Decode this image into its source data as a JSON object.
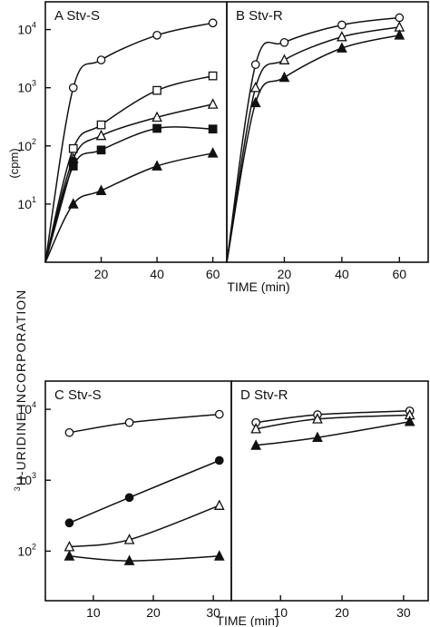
{
  "figure": {
    "ylabel_html_parts": [
      "3",
      "H-URIDINE  INCORPORATION"
    ],
    "ylabel_units": "(cpm)",
    "top_xlabel": "TIME  (min)",
    "bottom_xlabel": "TIME  (min)"
  },
  "chart_data": [
    {
      "type": "line",
      "panel_label": "A  Stv-S",
      "yscale": "log",
      "xlim": [
        0,
        65
      ],
      "ylim": [
        1,
        30000
      ],
      "yticks": [
        {
          "v": 10,
          "b": "10",
          "e": "1"
        },
        {
          "v": 100,
          "b": "10",
          "e": "2"
        },
        {
          "v": 1000,
          "b": "10",
          "e": "3"
        },
        {
          "v": 10000,
          "b": "10",
          "e": "4"
        }
      ],
      "xticks": [
        20,
        40,
        60
      ],
      "series": [
        {
          "marker": "open-circle",
          "x": [
            0,
            10,
            20,
            40,
            60
          ],
          "y": [
            1,
            1000,
            3000,
            8000,
            13000
          ]
        },
        {
          "marker": "open-square",
          "x": [
            0,
            10,
            20,
            40,
            60
          ],
          "y": [
            1,
            90,
            230,
            900,
            1600
          ]
        },
        {
          "marker": "open-triangle",
          "x": [
            0,
            10,
            20,
            40,
            60
          ],
          "y": [
            1,
            60,
            150,
            310,
            520
          ]
        },
        {
          "marker": "filled-square",
          "x": [
            0,
            10,
            20,
            40,
            60
          ],
          "y": [
            1,
            45,
            85,
            200,
            195
          ]
        },
        {
          "marker": "filled-circle",
          "x": [
            0,
            10
          ],
          "y": [
            1,
            55
          ]
        },
        {
          "marker": "filled-triangle",
          "x": [
            0,
            10,
            20,
            40,
            60
          ],
          "y": [
            1,
            10,
            17,
            45,
            75
          ]
        }
      ]
    },
    {
      "type": "line",
      "panel_label": "B  Stv-R",
      "yscale": "log",
      "xlim": [
        0,
        70
      ],
      "ylim": [
        1,
        30000
      ],
      "yticks": [],
      "xticks": [
        20,
        40,
        60
      ],
      "series": [
        {
          "marker": "open-circle",
          "x": [
            0,
            10,
            20,
            40,
            60
          ],
          "y": [
            1,
            2500,
            6000,
            12000,
            16000
          ]
        },
        {
          "marker": "open-triangle",
          "x": [
            0,
            10,
            20,
            40,
            60
          ],
          "y": [
            1,
            1000,
            3000,
            7500,
            11000
          ]
        },
        {
          "marker": "filled-triangle",
          "x": [
            0,
            10,
            20,
            40,
            60
          ],
          "y": [
            1,
            550,
            1500,
            4800,
            8000
          ]
        }
      ]
    },
    {
      "type": "line",
      "panel_label": "C  Stv-S",
      "yscale": "log",
      "xlim": [
        2,
        33
      ],
      "ylim": [
        20,
        25000
      ],
      "yticks": [
        {
          "v": 100,
          "b": "10",
          "e": "2"
        },
        {
          "v": 1000,
          "b": "10",
          "e": "3"
        },
        {
          "v": 10000,
          "b": "10",
          "e": "4"
        }
      ],
      "xticks": [
        10,
        20,
        30
      ],
      "series": [
        {
          "marker": "open-circle",
          "x": [
            6,
            16,
            31
          ],
          "y": [
            4700,
            6500,
            8500
          ]
        },
        {
          "marker": "filled-circle",
          "x": [
            6,
            16,
            31
          ],
          "y": [
            250,
            570,
            1900
          ]
        },
        {
          "marker": "open-triangle",
          "x": [
            6,
            16,
            31
          ],
          "y": [
            115,
            145,
            440
          ]
        },
        {
          "marker": "filled-triangle",
          "x": [
            6,
            16,
            31
          ],
          "y": [
            85,
            73,
            85
          ]
        }
      ]
    },
    {
      "type": "line",
      "panel_label": "D  Stv-R",
      "yscale": "log",
      "xlim": [
        2,
        34
      ],
      "ylim": [
        20,
        25000
      ],
      "yticks": [],
      "xticks": [
        10,
        20,
        30
      ],
      "series": [
        {
          "marker": "open-circle",
          "x": [
            6,
            16,
            31
          ],
          "y": [
            6500,
            8400,
            9500
          ]
        },
        {
          "marker": "open-triangle",
          "x": [
            6,
            16,
            31
          ],
          "y": [
            5300,
            7300,
            8300
          ]
        },
        {
          "marker": "filled-triangle",
          "x": [
            6,
            16,
            31
          ],
          "y": [
            3100,
            4000,
            6700
          ]
        }
      ]
    }
  ]
}
